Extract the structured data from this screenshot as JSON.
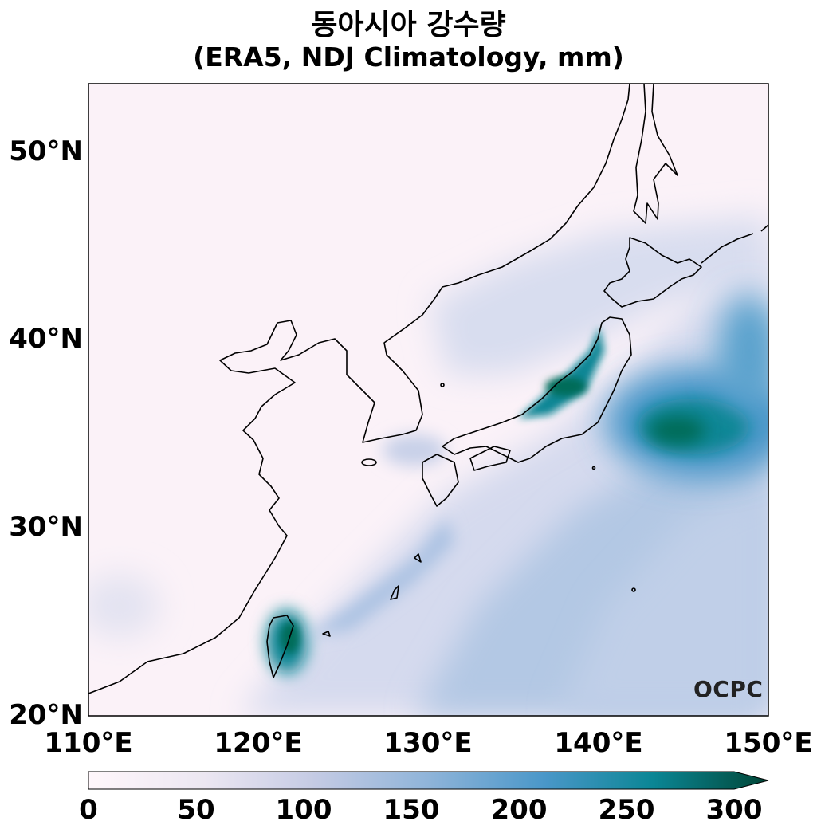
{
  "title_line1": "동아시아 강수량",
  "title_line2": "(ERA5, NDJ Climatology, mm)",
  "lat_labels": [
    "50°N",
    "40°N",
    "30°N",
    "20°N"
  ],
  "lon_labels": [
    "110°E",
    "120°E",
    "130°E",
    "140°E",
    "150°E"
  ],
  "map": {
    "type": "filled-contour-map",
    "variable": "precipitation",
    "units": "mm",
    "lon_range": [
      110,
      150
    ],
    "lat_range": [
      20,
      53.5
    ]
  },
  "colorbar": {
    "ticks": [
      "0",
      "50",
      "100",
      "150",
      "200",
      "250",
      "300"
    ],
    "range": [
      0,
      300
    ],
    "extend": "max",
    "colors": [
      "#fff7fb",
      "#ece7f2",
      "#c5cbe4",
      "#8fb4d9",
      "#4a97c9",
      "#0b8695",
      "#016c59",
      "#014636"
    ]
  },
  "logo": "OCPC"
}
